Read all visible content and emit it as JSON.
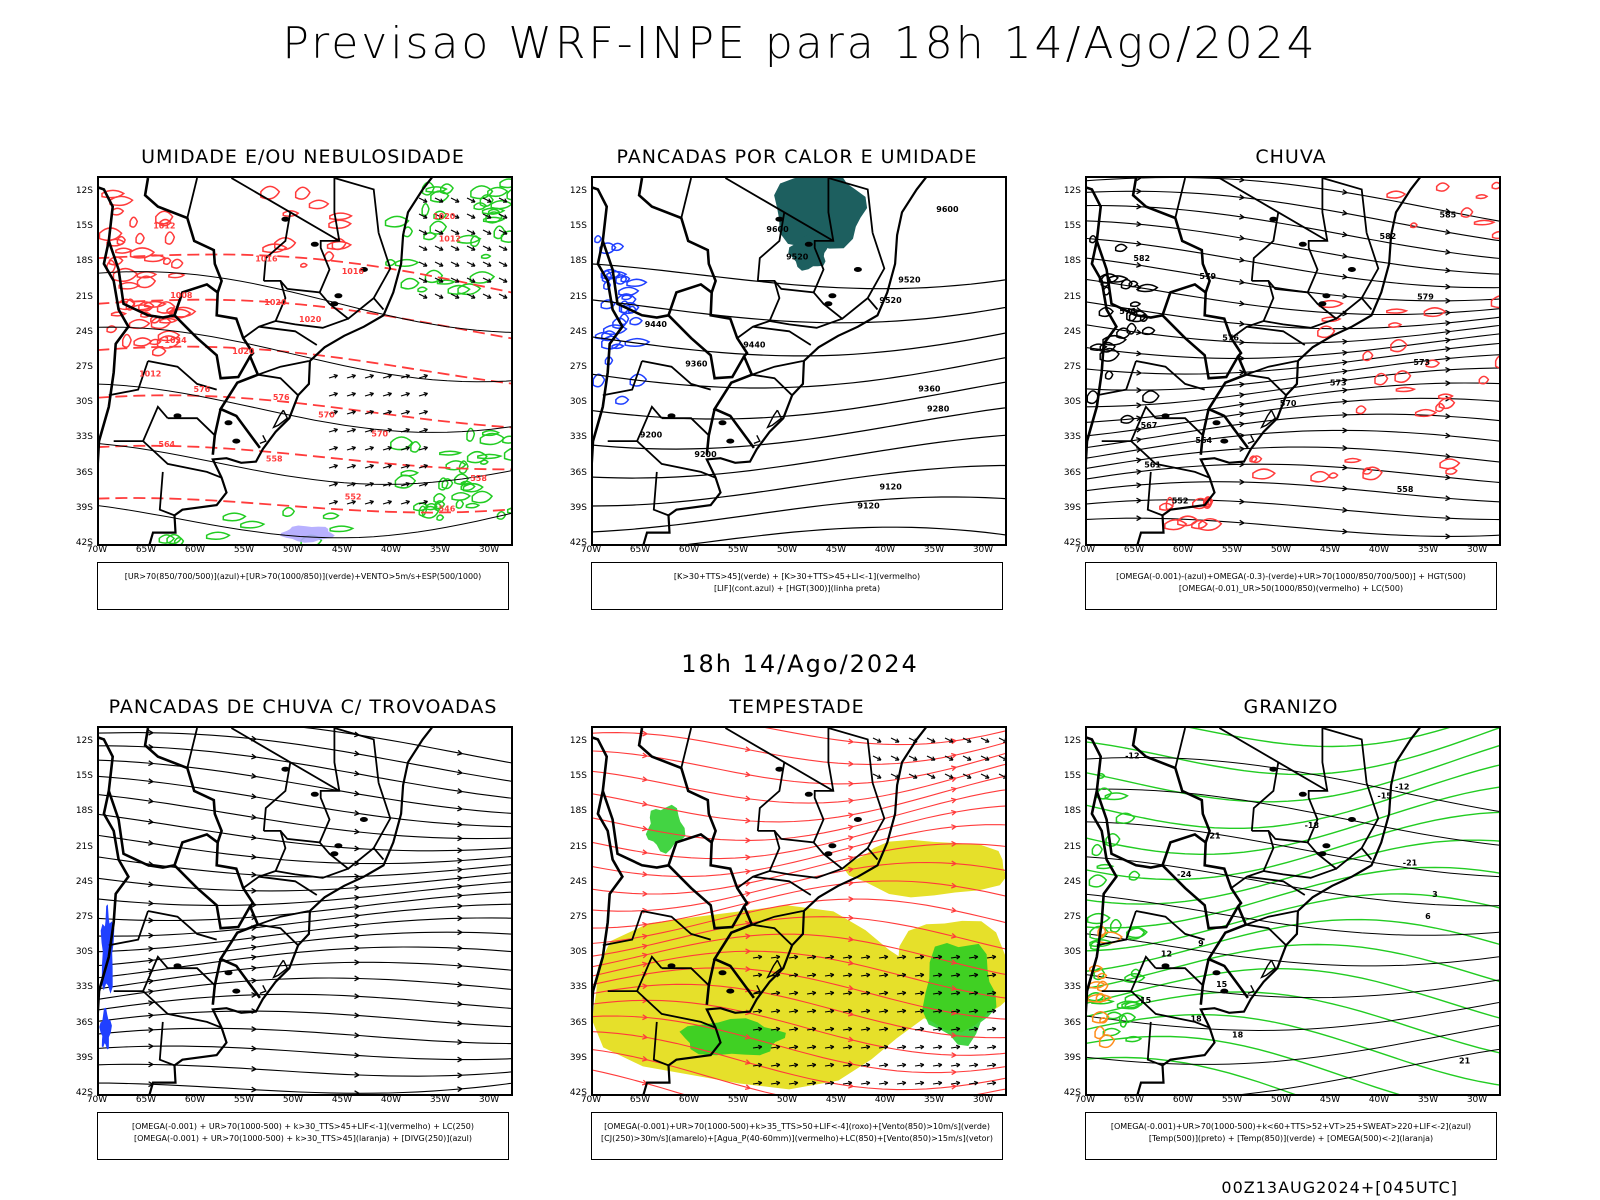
{
  "title": "Previsao WRF-INPE  para 18h 14/Ago/2024",
  "subtitle": "18h 14/Ago/2024",
  "footer": "00Z13AUG2024+[045UTC]",
  "axes": {
    "lat_labels": [
      "12S",
      "15S",
      "18S",
      "21S",
      "24S",
      "27S",
      "30S",
      "33S",
      "36S",
      "39S",
      "42S"
    ],
    "lon_labels": [
      "70W",
      "65W",
      "60W",
      "55W",
      "50W",
      "45W",
      "40W",
      "35W",
      "30W"
    ]
  },
  "colors": {
    "red": "#ff3b3b",
    "green": "#22cc22",
    "blue": "#2040ff",
    "teal": "#1d5f5f",
    "yellow": "#e6e02a",
    "orange": "#ff8c1a",
    "lavender": "#b0a8ff"
  },
  "panels": [
    {
      "title": "UMIDADE E/OU NEBULOSIDADE",
      "legend": [
        "[UR>70(850/700/500)](azul)+[UR>70(1000/850)](verde)+VENTO>5m/s+ESP(500/1000)"
      ],
      "labels": [
        "1020",
        "1012",
        "1012",
        "1016",
        "1016",
        "1008",
        "1020",
        "1020",
        "1024",
        "1020",
        "1012",
        "576",
        "576",
        "570",
        "570",
        "564",
        "558",
        "558",
        "552",
        "546"
      ]
    },
    {
      "title": "PANCADAS POR CALOR E UMIDADE",
      "legend": [
        "[K>30+TTS>45](verde) + [K>30+TTS>45+LI<-1](vermelho)",
        "[LIF](cont.azul) + [HGT(300)](linha preta)"
      ],
      "labels": [
        "9600",
        "9600",
        "9520",
        "9520",
        "9520",
        "9440",
        "9440",
        "9360",
        "9360",
        "9280",
        "9200",
        "9200",
        "9120",
        "9120"
      ]
    },
    {
      "title": "CHUVA",
      "legend": [
        "[OMEGA(-0.001)-(azul)+OMEGA(-0.3)-(verde)+UR>70(1000/850/700/500)] + HGT(500)",
        "[OMEGA(-0.01)_UR>50(1000/850)(vermelho) + LC(500)"
      ],
      "labels": [
        "585",
        "582",
        "582",
        "579",
        "579",
        "576",
        "576",
        "573",
        "573",
        "570",
        "567",
        "564",
        "561",
        "558",
        "552"
      ]
    },
    {
      "title": "PANCADAS DE CHUVA C/ TROVOADAS",
      "legend": [
        "[OMEGA(-0.001) + UR>70(1000-500) + k>30_TTS>45+LIF<-1](vermelho) + LC(250)",
        "[OMEGA(-0.001) + UR>70(1000-500) + k>30_TTS>45](laranja) + [DIVG(250)](azul)"
      ],
      "labels": []
    },
    {
      "title": "TEMPESTADE",
      "legend": [
        "[OMEGA(-0.001)+UR>70(1000-500)+k>35_TTS>50+LIF<-4](roxo)+[Vento(850)>10m/s](verde)",
        "[CJ(250)>30m/s](amarelo)+[Agua_P(40-60mm)](vermelho)+LC(850)+[Vento(850)>15m/s](vetor)"
      ],
      "labels": []
    },
    {
      "title": "GRANIZO",
      "legend": [
        "[OMEGA(-0.001)+UR>70(1000-500)+k<60+TTS>52+VT>25+SWEAT>220+LIF<-2](azul)",
        "[Temp(500)](preto) + [Temp(850)](verde) + [OMEGA(500)<-2](laranja)"
      ],
      "labels": [
        "-12",
        "-12",
        "-15",
        "-18",
        "-21",
        "-21",
        "-24",
        "3",
        "6",
        "9",
        "12",
        "15",
        "15",
        "18",
        "18",
        "21"
      ]
    }
  ]
}
